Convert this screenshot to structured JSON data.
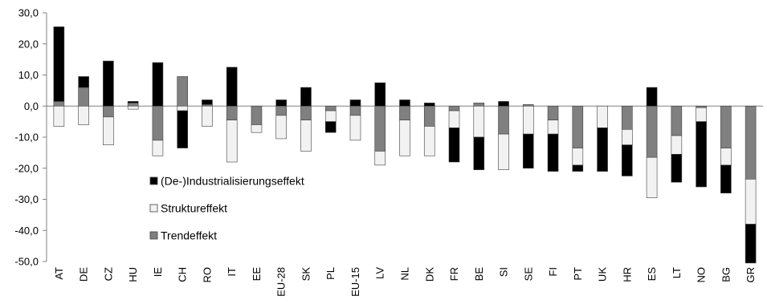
{
  "chart_data": {
    "type": "bar",
    "stacked": true,
    "categories": [
      "AT",
      "DE",
      "CZ",
      "HU",
      "IE",
      "CH",
      "RO",
      "IT",
      "EE",
      "EU-28",
      "SK",
      "PL",
      "EU-15",
      "LV",
      "NL",
      "DK",
      "FR",
      "BE",
      "SI",
      "SE",
      "FI",
      "PT",
      "UK",
      "HR",
      "ES",
      "LT",
      "NO",
      "BG",
      "GR"
    ],
    "series": [
      {
        "name": "Trendeffekt",
        "color": "#808080",
        "values": [
          1.5,
          6.0,
          -3.5,
          1.0,
          -11.0,
          9.5,
          0.5,
          -4.5,
          -6.0,
          -3.0,
          -4.5,
          -1.5,
          -3.0,
          -14.5,
          -4.5,
          -6.5,
          -1.5,
          1.0,
          -9.0,
          0.5,
          -4.5,
          -13.5,
          0,
          -7.5,
          -16.5,
          -9.5,
          -0.5,
          -13.5,
          -23.5
        ]
      },
      {
        "name": "Struktureffekt",
        "color": "#f2f2f2",
        "values": [
          -6.5,
          -6.0,
          -9.0,
          -1.0,
          -5.0,
          -1.5,
          -6.5,
          -13.5,
          -2.5,
          -7.5,
          -10.0,
          -3.5,
          -8.0,
          -4.5,
          -11.5,
          -9.5,
          -5.5,
          -10.0,
          -11.5,
          -9.0,
          -4.5,
          -5.5,
          -7.0,
          -5.0,
          -13.0,
          -6.0,
          -4.5,
          -5.5,
          -14.5
        ]
      },
      {
        "name": "(De-)Industrialisierungseffekt",
        "color": "#000000",
        "values": [
          24.0,
          3.5,
          14.5,
          0.5,
          14.0,
          -12.0,
          1.5,
          12.5,
          0,
          2.0,
          6.0,
          -3.5,
          2.0,
          7.5,
          2.0,
          1.0,
          -11.0,
          -10.5,
          1.5,
          -11.0,
          -12.0,
          -2.0,
          -14.0,
          -10.0,
          6.0,
          -9.0,
          -21.0,
          -9.0,
          -12.5
        ]
      }
    ],
    "ylim": [
      -50,
      30
    ],
    "yticks": [
      "30,0",
      "20,0",
      "10,0",
      "0,0",
      "-10,0",
      "-20,0",
      "-30,0",
      "-40,0",
      "-50,0"
    ],
    "ytick_values": [
      30,
      20,
      10,
      0,
      -10,
      -20,
      -30,
      -40,
      -50
    ],
    "title": "",
    "xlabel": "",
    "ylabel": "",
    "legend": {
      "placement": "center-left",
      "entries": [
        "(De-)Industrialisierungseffekt",
        "Struktureffekt",
        "Trendeffekt"
      ]
    },
    "grid": false
  }
}
